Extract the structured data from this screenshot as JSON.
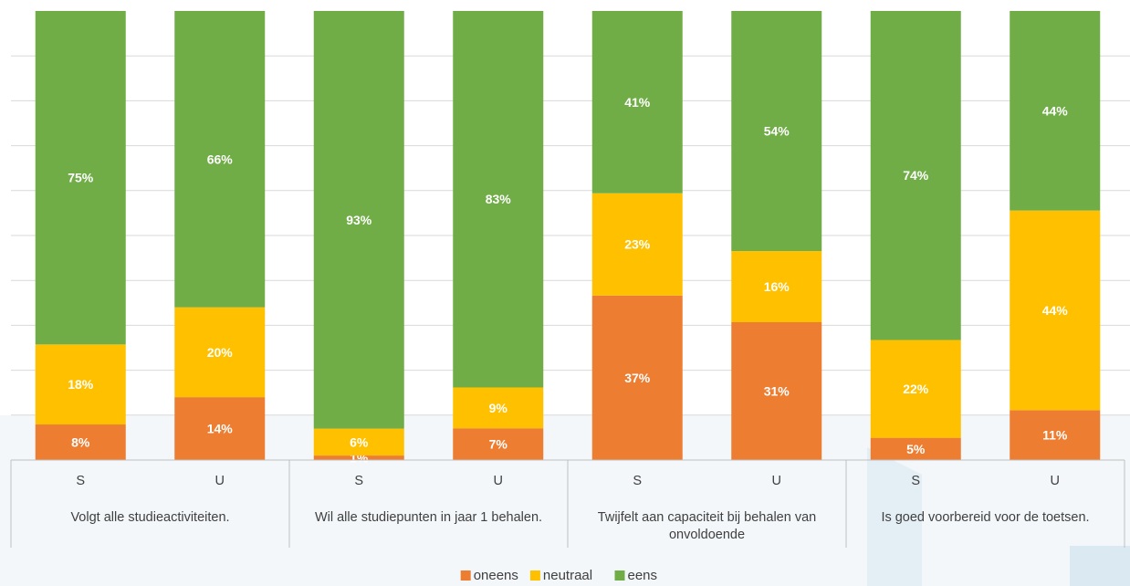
{
  "chart_data": {
    "type": "bar",
    "stacked": true,
    "stack_mode": "percent",
    "grid": true,
    "legend_position": "bottom",
    "groups": [
      "Volgt alle studieactiviteiten.",
      "Wil alle studiepunten in jaar 1 behalen.",
      "Twijfelt aan capaciteit bij behalen van onvoldoende",
      "Is goed voorbereid voor de toetsen."
    ],
    "sub_categories": [
      "S",
      "U",
      "S",
      "U",
      "S",
      "U",
      "S",
      "U"
    ],
    "series": [
      {
        "name": "oneens",
        "color": "#ed7d31",
        "values": [
          8,
          14,
          1,
          7,
          37,
          31,
          5,
          11
        ],
        "labels": [
          "8%",
          "14%",
          "1%",
          "7%",
          "37%",
          "31%",
          "5%",
          "11%"
        ]
      },
      {
        "name": "neutraal",
        "color": "#ffc000",
        "values": [
          18,
          20,
          6,
          9,
          23,
          16,
          22,
          44
        ],
        "labels": [
          "18%",
          "20%",
          "6%",
          "9%",
          "23%",
          "16%",
          "22%",
          "44%"
        ]
      },
      {
        "name": "eens",
        "color": "#70ad47",
        "values": [
          75,
          66,
          93,
          83,
          41,
          54,
          74,
          44
        ],
        "labels": [
          "75%",
          "66%",
          "93%",
          "83%",
          "41%",
          "54%",
          "74%",
          "44%"
        ]
      }
    ],
    "ylim": [
      0,
      100
    ]
  }
}
